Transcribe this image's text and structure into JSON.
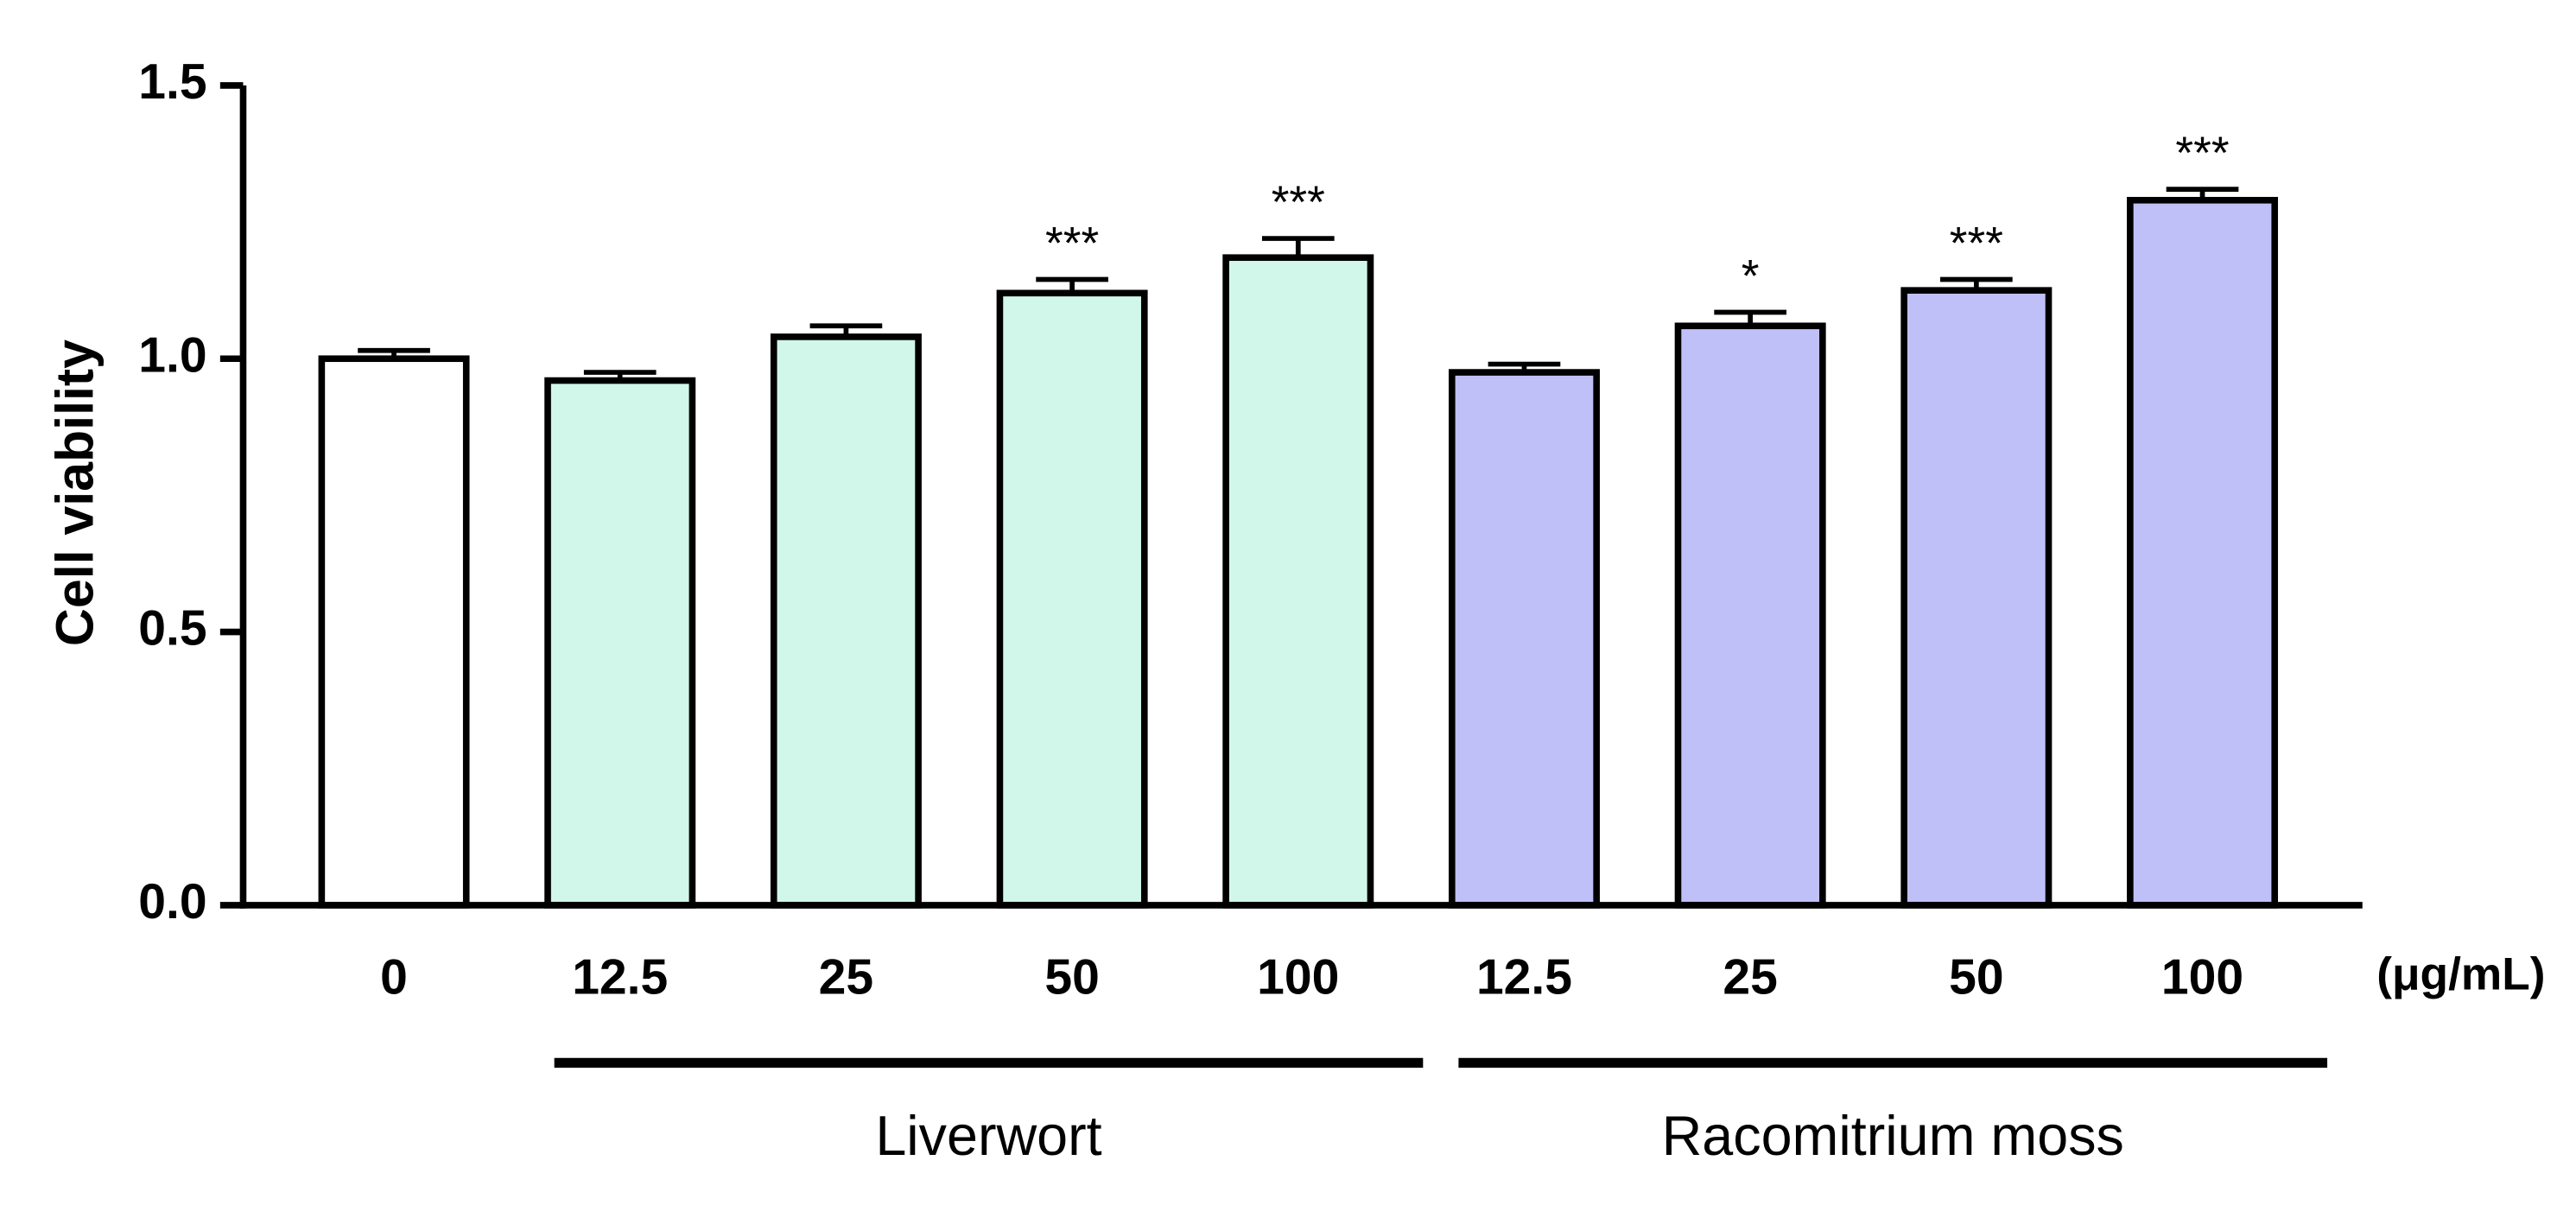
{
  "chart_data": {
    "type": "bar",
    "y_label": "Cell viability",
    "x_label": "(μg/mL)",
    "categories": [
      "0",
      "12.5",
      "25",
      "50",
      "100",
      "12.5",
      "25",
      "50",
      "100"
    ],
    "values": [
      1.0,
      0.96,
      1.04,
      1.12,
      1.185,
      0.975,
      1.06,
      1.125,
      1.29
    ],
    "errors": [
      0.015,
      0.015,
      0.02,
      0.025,
      0.035,
      0.015,
      0.025,
      0.02,
      0.02
    ],
    "annotations": [
      null,
      null,
      null,
      "***",
      "***",
      null,
      "*",
      "***",
      "***"
    ],
    "colors": [
      "#ffffff",
      "#d0f7ea",
      "#d0f7ea",
      "#d0f7ea",
      "#d0f7ea",
      "#c0c0f8",
      "#c0c0f8",
      "#c0c0f8",
      "#c0c0f8"
    ],
    "groups": [
      {
        "label": "Liverwort",
        "start": 1,
        "end": 4
      },
      {
        "label": "Racomitrium moss",
        "start": 5,
        "end": 8
      }
    ],
    "ylim": [
      0,
      1.5
    ],
    "yticks": [
      {
        "value": 0,
        "label": "0.0"
      },
      0.5,
      {
        "value": 1,
        "label": "1.0"
      },
      1.5
    ]
  }
}
